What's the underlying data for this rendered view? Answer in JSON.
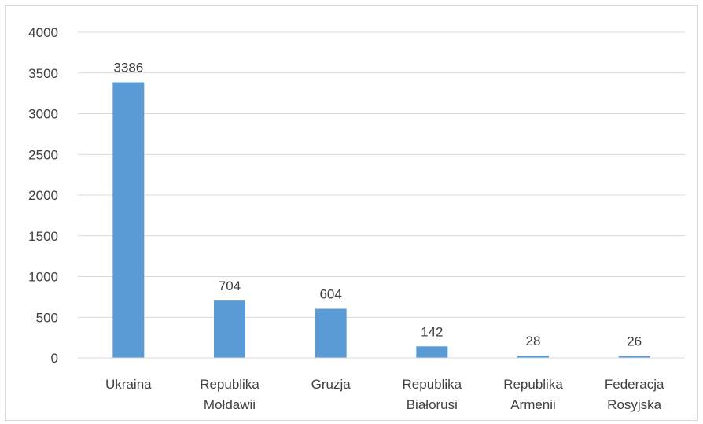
{
  "chart_data": {
    "type": "bar",
    "categories": [
      [
        "Ukraina"
      ],
      [
        "Republika",
        "Mołdawii"
      ],
      [
        "Gruzja"
      ],
      [
        "Republika",
        "Białorusi"
      ],
      [
        "Republika",
        "Armenii"
      ],
      [
        "Federacja",
        "Rosyjska"
      ]
    ],
    "values": [
      3386,
      704,
      604,
      142,
      28,
      26
    ],
    "data_labels": [
      "3386",
      "704",
      "604",
      "142",
      "28",
      "26"
    ],
    "y_ticks": [
      "0",
      "500",
      "1000",
      "1500",
      "2000",
      "2500",
      "3000",
      "3500",
      "4000"
    ],
    "ylim": [
      0,
      4000
    ],
    "grid": true,
    "legend": "none",
    "bar_color": "#5b9bd5",
    "grid_color": "#d9d9d9",
    "text_color": "#404040"
  }
}
